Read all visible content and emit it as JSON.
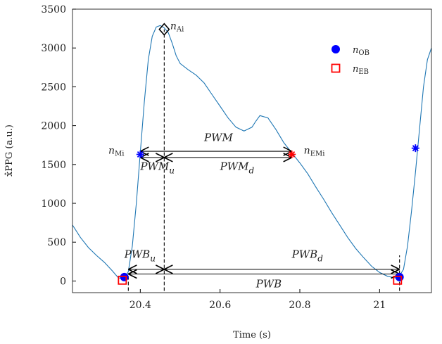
{
  "chart_data": {
    "type": "line",
    "xlabel": "Time (s)",
    "ylabel": "x̂PPG (a.u.)",
    "xlim": [
      20.23,
      21.13
    ],
    "ylim": [
      -150,
      3500
    ],
    "xticks": [
      20.4,
      20.6,
      20.8,
      21
    ],
    "xtick_labels": [
      "20.4",
      "20.6",
      "20.8",
      "21"
    ],
    "yticks": [
      0,
      500,
      1000,
      1500,
      2000,
      2500,
      3000,
      3500
    ],
    "ytick_labels": [
      "0",
      "500",
      "1000",
      "1500",
      "2000",
      "2500",
      "3000",
      "3500"
    ],
    "grid": false,
    "legend_position": "top-right",
    "legend": [
      {
        "symbol": "filled-circle",
        "color": "#0000ff",
        "label": "nOB"
      },
      {
        "symbol": "open-square",
        "color": "#ff0000",
        "label": "nEB"
      }
    ],
    "series": [
      {
        "color": "#1f77b4",
        "x": [
          20.23,
          20.25,
          20.27,
          20.29,
          20.31,
          20.33,
          20.345,
          20.36,
          20.37,
          20.38,
          20.39,
          20.4,
          20.41,
          20.42,
          20.43,
          20.44,
          20.45,
          20.46,
          20.47,
          20.48,
          20.49,
          20.5,
          20.52,
          20.54,
          20.56,
          20.58,
          20.6,
          20.62,
          20.64,
          20.66,
          20.68,
          20.69,
          20.7,
          20.72,
          20.74,
          20.76,
          20.78,
          20.8,
          20.82,
          20.84,
          20.86,
          20.88,
          20.9,
          20.92,
          20.94,
          20.96,
          20.98,
          21.0,
          21.02,
          21.04,
          21.05,
          21.06,
          21.07,
          21.08,
          21.09,
          21.1,
          21.11,
          21.12,
          21.13
        ],
        "y": [
          720,
          560,
          430,
          330,
          240,
          130,
          40,
          30,
          120,
          450,
          1000,
          1650,
          2300,
          2850,
          3150,
          3270,
          3290,
          3260,
          3200,
          3060,
          2900,
          2800,
          2720,
          2650,
          2550,
          2400,
          2250,
          2100,
          1980,
          1930,
          1980,
          2060,
          2130,
          2100,
          1950,
          1780,
          1650,
          1520,
          1380,
          1210,
          1050,
          880,
          720,
          560,
          420,
          300,
          190,
          110,
          60,
          40,
          70,
          150,
          450,
          900,
          1400,
          1950,
          2500,
          2850,
          3000
        ]
      }
    ],
    "markers": [
      {
        "name": "n-ob-marker-1",
        "symbol": "filled-circle",
        "color": "#0000ff",
        "x": 20.36,
        "y": 50
      },
      {
        "name": "n-ob-marker-2",
        "symbol": "filled-circle",
        "color": "#0000ff",
        "x": 21.05,
        "y": 50
      },
      {
        "name": "n-eb-marker-1",
        "symbol": "open-square",
        "color": "#ff0000",
        "x": 20.355,
        "y": 10
      },
      {
        "name": "n-eb-marker-2",
        "symbol": "open-square",
        "color": "#ff0000",
        "x": 21.045,
        "y": 10
      },
      {
        "name": "n-mi-marker-1",
        "symbol": "asterisk",
        "color": "#0000ff",
        "x": 20.4,
        "y": 1630
      },
      {
        "name": "n-mi-marker-2",
        "symbol": "asterisk",
        "color": "#0000ff",
        "x": 21.09,
        "y": 1710
      },
      {
        "name": "n-emi-marker",
        "symbol": "asterisk",
        "color": "#ff0000",
        "x": 20.78,
        "y": 1630
      },
      {
        "name": "n-ai-marker",
        "symbol": "open-diamond",
        "color": "#000000",
        "x": 20.46,
        "y": 3240
      }
    ],
    "vlines": [
      {
        "name": "peak-dashed-line",
        "x": 20.46,
        "y0": -200,
        "y1": 3240
      },
      {
        "name": "onset-dashed-line",
        "x": 20.37,
        "y0": -200,
        "y1": 100
      },
      {
        "name": "end-dashed-line",
        "x": 21.05,
        "y0": -200,
        "y1": 330
      }
    ],
    "arrows": [
      {
        "name": "pwm-arrow",
        "x0": 20.4,
        "x1": 20.78,
        "y": 1670
      },
      {
        "name": "pwm-d-arrow",
        "x0": 20.46,
        "x1": 20.78,
        "y": 1590
      },
      {
        "name": "pwm-u-arrow",
        "x0": 20.4,
        "x1": 20.46,
        "y": 1590
      },
      {
        "name": "pwb-u-arrow",
        "x0": 20.37,
        "x1": 20.46,
        "y": 150
      },
      {
        "name": "pwb-d-arrow",
        "x0": 20.46,
        "x1": 21.05,
        "y": 150
      },
      {
        "name": "pwb-arrow",
        "x0": 20.37,
        "x1": 21.05,
        "y": 90
      }
    ],
    "labels": [
      {
        "name": "n-ai-label",
        "main": "n",
        "sub": "Ai",
        "x": 20.475,
        "y": 3240,
        "cls": "node"
      },
      {
        "name": "n-mi-label",
        "main": "n",
        "sub": "Mi",
        "x": 20.32,
        "y": 1640,
        "cls": "node"
      },
      {
        "name": "n-emi-label",
        "main": "n",
        "sub": "EMi",
        "x": 20.81,
        "y": 1640,
        "cls": "node"
      },
      {
        "name": "pwm-label",
        "main": "PWM",
        "sub": "",
        "x": 20.56,
        "y": 1800,
        "cls": "ann"
      },
      {
        "name": "pwm-u-label",
        "main": "PWM",
        "sub": "u",
        "x": 20.4,
        "y": 1430,
        "cls": "ann"
      },
      {
        "name": "pwm-d-label",
        "main": "PWM",
        "sub": "d",
        "x": 20.6,
        "y": 1430,
        "cls": "ann"
      },
      {
        "name": "pwb-u-label",
        "main": "PWB",
        "sub": "u",
        "x": 20.36,
        "y": 300,
        "cls": "ann"
      },
      {
        "name": "pwb-d-label",
        "main": "PWB",
        "sub": "d",
        "x": 20.78,
        "y": 300,
        "cls": "ann"
      },
      {
        "name": "pwb-label",
        "main": "PWB",
        "sub": "",
        "x": 20.69,
        "y": -80,
        "cls": "ann"
      }
    ]
  }
}
